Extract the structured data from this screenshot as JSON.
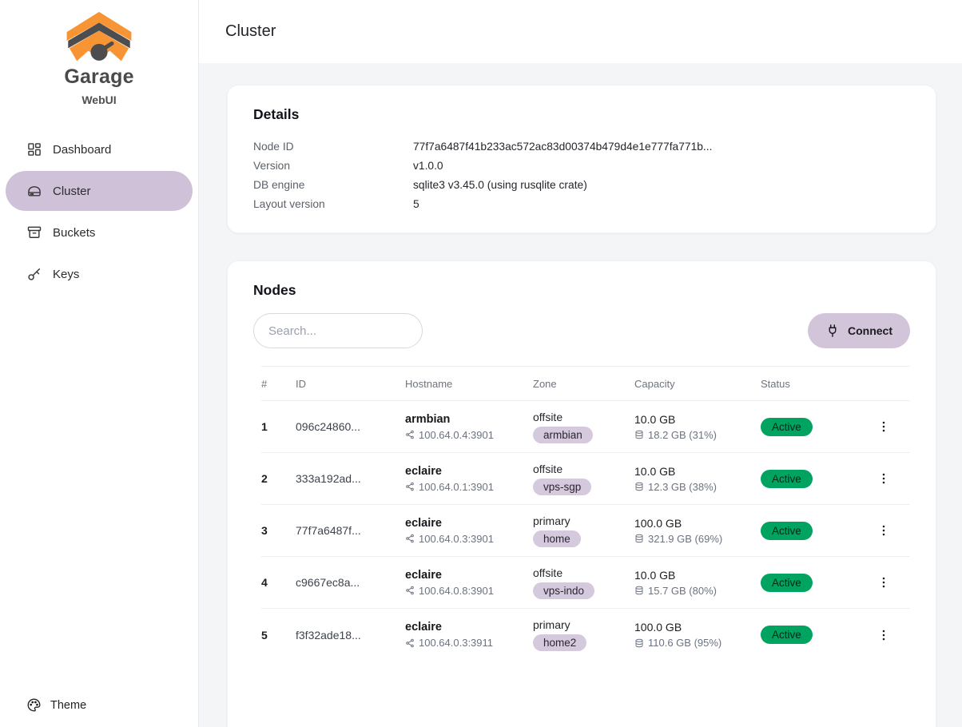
{
  "sidebar": {
    "logo_title": "Garage",
    "logo_subtitle": "WebUI",
    "items": [
      {
        "label": "Dashboard",
        "icon": "dashboard-grid-icon",
        "active": false
      },
      {
        "label": "Cluster",
        "icon": "hard-drive-icon",
        "active": true
      },
      {
        "label": "Buckets",
        "icon": "archive-box-icon",
        "active": false
      },
      {
        "label": "Keys",
        "icon": "key-icon",
        "active": false
      }
    ],
    "footer": {
      "label": "Theme"
    }
  },
  "header": {
    "title": "Cluster"
  },
  "details": {
    "title": "Details",
    "rows": [
      {
        "label": "Node ID",
        "value": "77f7a6487f41b233ac572ac83d00374b479d4e1e777fa771b..."
      },
      {
        "label": "Version",
        "value": "v1.0.0"
      },
      {
        "label": "DB engine",
        "value": "sqlite3 v3.45.0 (using rusqlite crate)"
      },
      {
        "label": "Layout version",
        "value": "5"
      }
    ]
  },
  "nodes": {
    "title": "Nodes",
    "search_placeholder": "Search...",
    "connect_label": "Connect",
    "columns": [
      "#",
      "ID",
      "Hostname",
      "Zone",
      "Capacity",
      "Status"
    ],
    "rows": [
      {
        "num": "1",
        "id": "096c24860...",
        "hostname": "armbian",
        "address": "100.64.0.4:3901",
        "zone": "offsite",
        "zone_tag": "armbian",
        "capacity": "10.0 GB",
        "usage": "18.2 GB (31%)",
        "status": "Active"
      },
      {
        "num": "2",
        "id": "333a192ad...",
        "hostname": "eclaire",
        "address": "100.64.0.1:3901",
        "zone": "offsite",
        "zone_tag": "vps-sgp",
        "capacity": "10.0 GB",
        "usage": "12.3 GB (38%)",
        "status": "Active"
      },
      {
        "num": "3",
        "id": "77f7a6487f...",
        "hostname": "eclaire",
        "address": "100.64.0.3:3901",
        "zone": "primary",
        "zone_tag": "home",
        "capacity": "100.0 GB",
        "usage": "321.9 GB (69%)",
        "status": "Active"
      },
      {
        "num": "4",
        "id": "c9667ec8a...",
        "hostname": "eclaire",
        "address": "100.64.0.8:3901",
        "zone": "offsite",
        "zone_tag": "vps-indo",
        "capacity": "10.0 GB",
        "usage": "15.7 GB (80%)",
        "status": "Active"
      },
      {
        "num": "5",
        "id": "f3f32ade18...",
        "hostname": "eclaire",
        "address": "100.64.0.3:3911",
        "zone": "primary",
        "zone_tag": "home2",
        "capacity": "100.0 GB",
        "usage": "110.6 GB (95%)",
        "status": "Active"
      }
    ]
  },
  "colors": {
    "brand_orange": "#f79433",
    "brand_gray": "#4d4d4f",
    "accent_lavender": "#cfc2d8",
    "zone_pill": "#d5c9dd",
    "status_green": "#00a35f",
    "page_background": "#f3f5f7"
  }
}
